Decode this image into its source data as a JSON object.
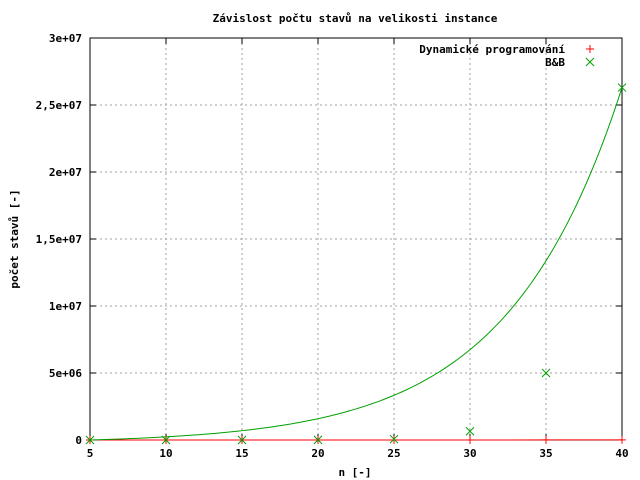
{
  "chart_data": {
    "type": "scatter",
    "title": "Závislost počtu stavů na velikosti instance",
    "xlabel": "n [-]",
    "ylabel": "počet stavů [-]",
    "xlim": [
      5,
      40
    ],
    "ylim": [
      0,
      30000000
    ],
    "x_ticks": [
      {
        "value": 5,
        "label": "5"
      },
      {
        "value": 10,
        "label": "10"
      },
      {
        "value": 15,
        "label": "15"
      },
      {
        "value": 20,
        "label": "20"
      },
      {
        "value": 25,
        "label": "25"
      },
      {
        "value": 30,
        "label": "30"
      },
      {
        "value": 35,
        "label": "35"
      },
      {
        "value": 40,
        "label": "40"
      }
    ],
    "y_ticks": [
      {
        "value": 0,
        "label": "0"
      },
      {
        "value": 5000000,
        "label": "5e+06"
      },
      {
        "value": 10000000,
        "label": "1e+07"
      },
      {
        "value": 15000000,
        "label": "1,5e+07"
      },
      {
        "value": 20000000,
        "label": "2e+07"
      },
      {
        "value": 25000000,
        "label": "2,5e+07"
      },
      {
        "value": 30000000,
        "label": "3e+07"
      }
    ],
    "grid": true,
    "legend_position": "top-right",
    "series": [
      {
        "name": "Dynamické programování",
        "color": "#ff0000",
        "marker": "plus",
        "fit_line": true,
        "x": [
          5,
          10,
          15,
          20,
          25,
          30,
          35,
          40
        ],
        "y": [
          100,
          400,
          900,
          1600,
          2500,
          3600,
          4900,
          6400
        ]
      },
      {
        "name": "B&B",
        "color": "#00a000",
        "marker": "cross",
        "fit_line": true,
        "fit_exponent": 0.1335,
        "x": [
          5,
          10,
          15,
          20,
          25,
          30,
          35,
          40
        ],
        "y": [
          0,
          500,
          3000,
          12000,
          60000,
          650000,
          5000000,
          26300000
        ]
      }
    ]
  }
}
